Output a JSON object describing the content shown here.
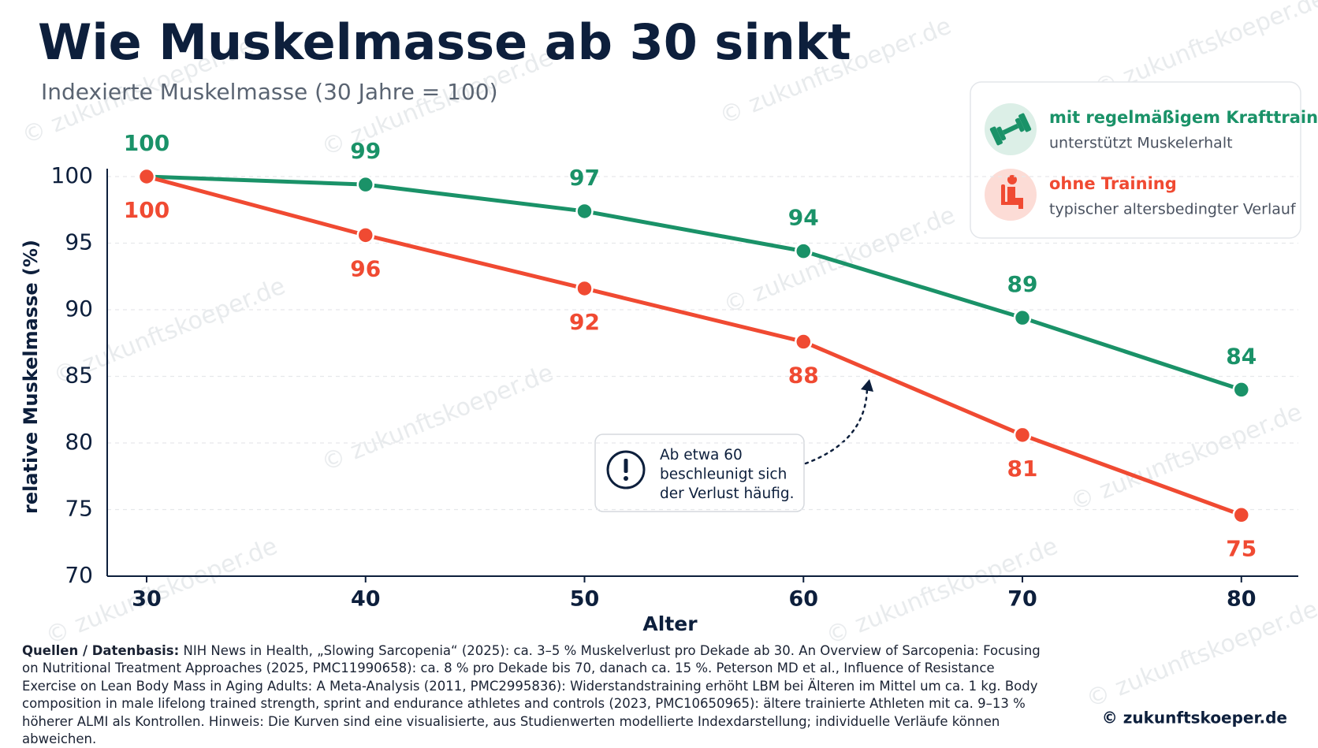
{
  "chart_data": {
    "type": "line",
    "title": "Wie Muskelmasse ab 30 sinkt",
    "subtitle": "Indexierte Muskelmasse (30 Jahre = 100)",
    "x_label": "Alter",
    "y_label": "relative Muskelmasse (%)",
    "x": [
      30,
      40,
      50,
      60,
      70,
      80
    ],
    "series": [
      {
        "name": "mit regelmäßigem Krafttraining",
        "description": "unterstützt Muskelerhalt",
        "color": "#1a9268",
        "values": [
          100,
          99.4,
          97.4,
          94.4,
          89.4,
          84
        ],
        "value_labels": [
          "100",
          "99",
          "97",
          "94",
          "89",
          "84"
        ]
      },
      {
        "name": "ohne Training",
        "description": "typischer altersbedingter Verlauf",
        "color": "#f04a32",
        "values": [
          100,
          95.6,
          91.6,
          87.6,
          80.6,
          74.6
        ],
        "value_labels": [
          "100",
          "96",
          "92",
          "88",
          "81",
          "75"
        ]
      }
    ],
    "xlim": [
      28.2,
      82.6
    ],
    "xticks": [
      30,
      40,
      50,
      60,
      70,
      80
    ],
    "ylim": [
      70,
      100
    ],
    "yticks": [
      70,
      75,
      80,
      85,
      90,
      95,
      100
    ],
    "grid": true,
    "legend": "upper right",
    "annotation": [
      "Ab etwa 60",
      "beschleunigt sich",
      "der Verlust häufig."
    ]
  },
  "sources": {
    "label": "Quellen / Datenbasis:",
    "text": "NIH News in Health, „Slowing Sarcopenia“ (2025): ca. 3–5 % Muskelverlust pro Dekade ab 30. An Overview of Sarcopenia: Focusing on Nutritional Treatment Approaches (2025, PMC11990658): ca. 8 % pro Dekade bis 70, danach ca. 15 %. Peterson MD et al., Influence of Resistance Exercise on Lean Body Mass in Aging Adults: A Meta-Analysis (2011, PMC2995836): Widerstandstraining erhöht LBM bei Älteren im Mittel um ca. 1 kg. Body composition in male lifelong trained strength, sprint and endurance athletes and controls (2023, PMC10650965): ältere trainierte Athleten mit ca. 9–13 % höherer ALMI als Kontrollen. Hinweis: Die Kurven sind eine visualisierte, aus Studienwerten modellierte Indexdarstellung; individuelle Verläufe können abweichen."
  },
  "copyright": "© zukunftskoeper.de",
  "watermark": "© zukunftskoeper.de"
}
